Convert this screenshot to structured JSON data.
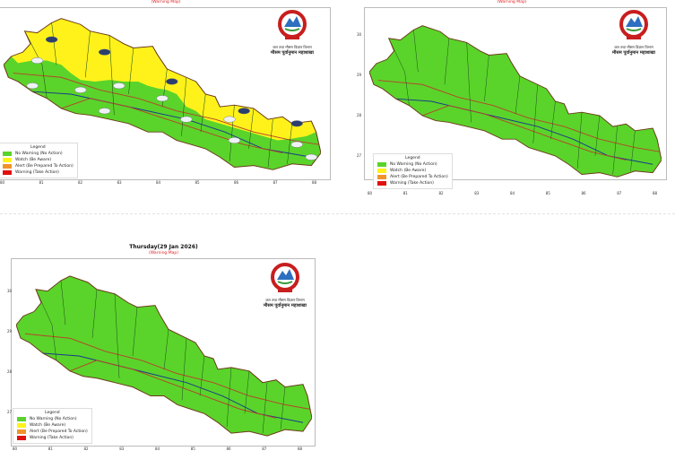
{
  "panels": [
    {
      "title": "",
      "subtitle": "(Warning Map)",
      "watch_regions": true,
      "weather_icons": [
        "cloud-rain-icon",
        "cloud-icon"
      ]
    },
    {
      "title": "",
      "subtitle": "(Warning Map)",
      "watch_regions": false
    },
    {
      "title": "Thursday(29 Jan 2026)",
      "subtitle": "(Warning Map)",
      "watch_regions": false
    }
  ],
  "logo": {
    "line1": "जल तथा मौसम विज्ञान विभाग",
    "line2": "मौसम पूर्वानुमान महाशाखा"
  },
  "legend": {
    "title": "Legend",
    "items": [
      {
        "label": "No Warning (No Action)",
        "color": "#5ad42a"
      },
      {
        "label": "Watch (Be Aware)",
        "color": "#fff21a"
      },
      {
        "label": "Alert (Be Prepared To Action)",
        "color": "#f0932b"
      },
      {
        "label": "Warning (Take Action)",
        "color": "#e01010"
      }
    ]
  },
  "axes": {
    "x_ticks": [
      "80",
      "81",
      "82",
      "83",
      "84",
      "85",
      "86",
      "87",
      "88"
    ],
    "y_ticks": [
      "30",
      "29",
      "28",
      "27"
    ]
  }
}
